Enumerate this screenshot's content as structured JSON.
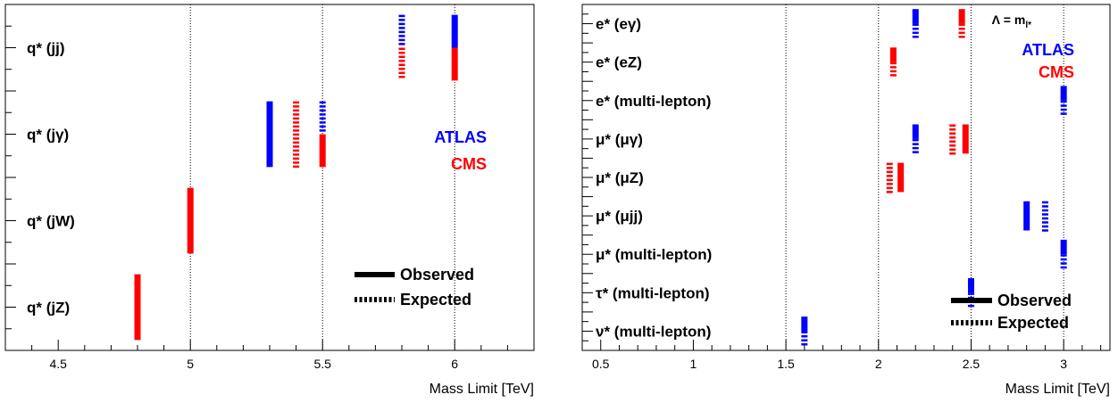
{
  "chart_data": [
    {
      "type": "bar",
      "panel": "quark",
      "xlabel": "Mass Limit [TeV]",
      "ylabel": "",
      "xlim": [
        4.3,
        6.3
      ],
      "grid_x": [
        5,
        5.5,
        6
      ],
      "tick_labels": [
        "4.5",
        "5",
        "5.5",
        "6"
      ],
      "tick_values": [
        4.5,
        5,
        5.5,
        6
      ],
      "categories": [
        "q* (jj)",
        "q* (jγ)",
        "q* (jW)",
        "q* (jZ)"
      ],
      "series": [
        {
          "name": "ATLAS",
          "color": "#0000ff",
          "observed": [
            6.0,
            5.3,
            null,
            null
          ],
          "expected": [
            5.8,
            5.5,
            null,
            null
          ]
        },
        {
          "name": "CMS",
          "color": "#ff0000",
          "observed": [
            6.0,
            5.5,
            5.0,
            4.8
          ],
          "expected": [
            5.8,
            5.4,
            null,
            null
          ]
        }
      ],
      "experiment_legend": [
        "ATLAS",
        "CMS"
      ],
      "style_legend": [
        "Observed",
        "Expected"
      ],
      "annotation": ""
    },
    {
      "type": "bar",
      "panel": "lepton",
      "xlabel": "Mass Limit [TeV]",
      "ylabel": "",
      "xlim": [
        0.4,
        3.25
      ],
      "grid_x": [
        1.5,
        2,
        2.5,
        3
      ],
      "tick_labels": [
        "0.5",
        "1",
        "1.5",
        "2",
        "2.5",
        "3"
      ],
      "tick_values": [
        0.5,
        1,
        1.5,
        2,
        2.5,
        3
      ],
      "categories": [
        "e* (eγ)",
        "e* (eZ)",
        "e* (multi-lepton)",
        "μ* (μγ)",
        "μ* (μZ)",
        "μ* (μjj)",
        "μ* (multi-lepton)",
        "τ* (multi-lepton)",
        "ν* (multi-lepton)"
      ],
      "series": [
        {
          "name": "ATLAS",
          "color": "#0000ff",
          "observed": [
            2.2,
            null,
            3.0,
            2.2,
            null,
            2.8,
            3.0,
            2.5,
            1.6
          ],
          "expected": [
            2.2,
            null,
            3.0,
            2.2,
            null,
            2.9,
            3.0,
            2.5,
            1.6
          ]
        },
        {
          "name": "CMS",
          "color": "#ff0000",
          "observed": [
            2.45,
            2.08,
            null,
            2.47,
            2.12,
            null,
            null,
            null,
            null
          ],
          "expected": [
            2.45,
            2.08,
            null,
            2.4,
            2.06,
            null,
            null,
            null,
            null
          ]
        }
      ],
      "experiment_legend": [
        "ATLAS",
        "CMS"
      ],
      "style_legend": [
        "Observed",
        "Expected"
      ],
      "annotation": "Λ = m"
    }
  ],
  "annotation_subscript": "l*"
}
